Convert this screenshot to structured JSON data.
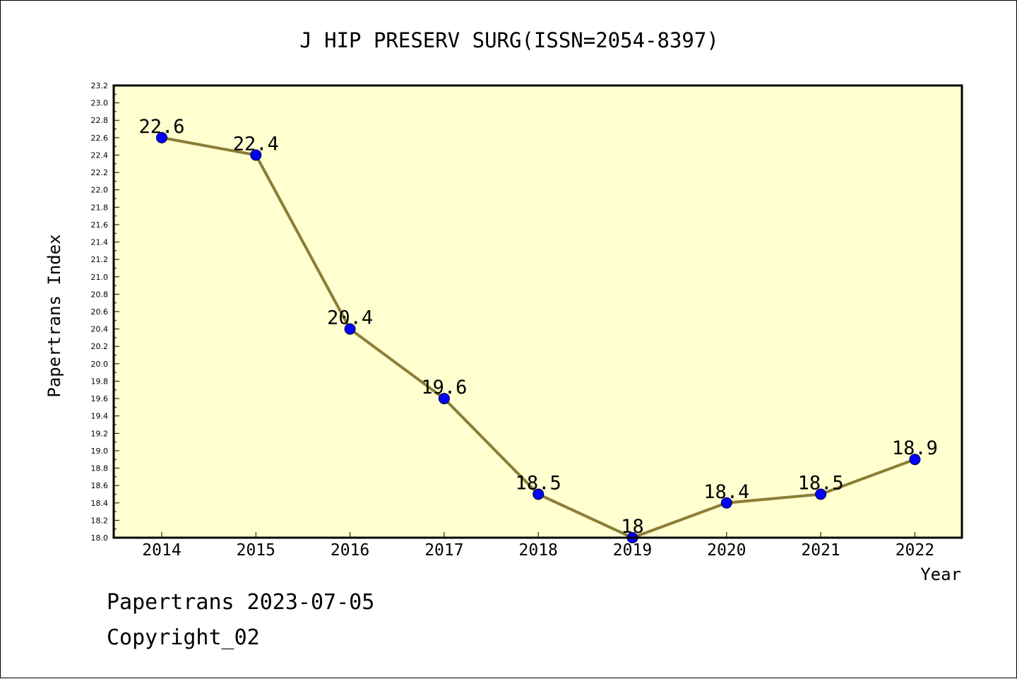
{
  "chart_data": {
    "type": "line",
    "title": "J HIP PRESERV SURG(ISSN=2054-8397)",
    "xlabel": "Year",
    "ylabel": "Papertrans Index",
    "categories": [
      "2014",
      "2015",
      "2016",
      "2017",
      "2018",
      "2019",
      "2020",
      "2021",
      "2022"
    ],
    "values": [
      22.6,
      22.4,
      20.4,
      19.6,
      18.5,
      18.0,
      18.4,
      18.5,
      18.9
    ],
    "data_labels": [
      "22.6",
      "22.4",
      "20.4",
      "19.6",
      "18.5",
      "18",
      "18.4",
      "18.5",
      "18.9"
    ],
    "ylim": [
      18.0,
      23.2
    ],
    "ytick_step": 0.2,
    "grid": false,
    "line_color": "#8B7D35",
    "marker_color": "#0000FF",
    "plot_background": "#FFFFD0"
  },
  "footer": {
    "line1": "Papertrans 2023-07-05",
    "line2": "Copyright_02"
  }
}
